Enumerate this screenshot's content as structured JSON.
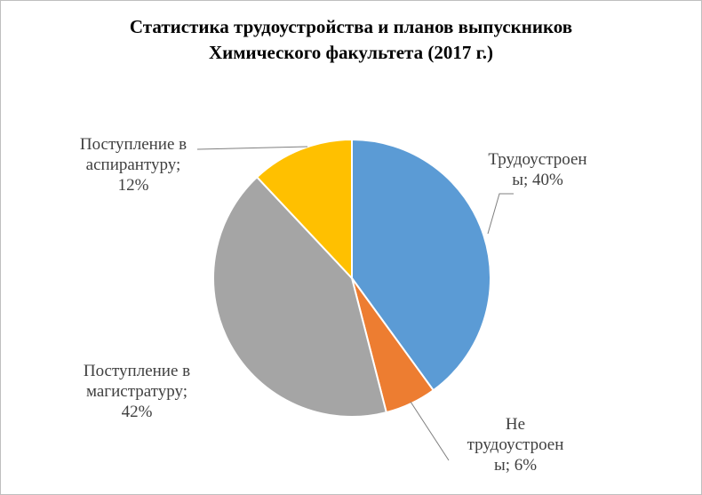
{
  "chart_data": {
    "type": "pie",
    "title": [
      "Статистика трудоустройства и планов выпускников",
      "Химического факультета (2017 г.)"
    ],
    "slices": [
      {
        "category": "Трудоустроены",
        "value": 40,
        "color": "#5b9bd5",
        "label": [
          "Трудоустроен",
          "ы; 40%"
        ]
      },
      {
        "category": "Не трудоустроены",
        "value": 6,
        "color": "#ed7d31",
        "label": [
          "Не",
          "трудоустроен",
          "ы; 6%"
        ]
      },
      {
        "category": "Поступление в магистратуру",
        "value": 42,
        "color": "#a5a5a5",
        "label": [
          "Поступление в",
          "магистратуру;",
          "42%"
        ]
      },
      {
        "category": "Поступление в аспирантуру",
        "value": 12,
        "color": "#ffc000",
        "label": [
          "Поступление в",
          "аспирантуру;",
          "12%"
        ]
      }
    ],
    "legend": "none"
  }
}
